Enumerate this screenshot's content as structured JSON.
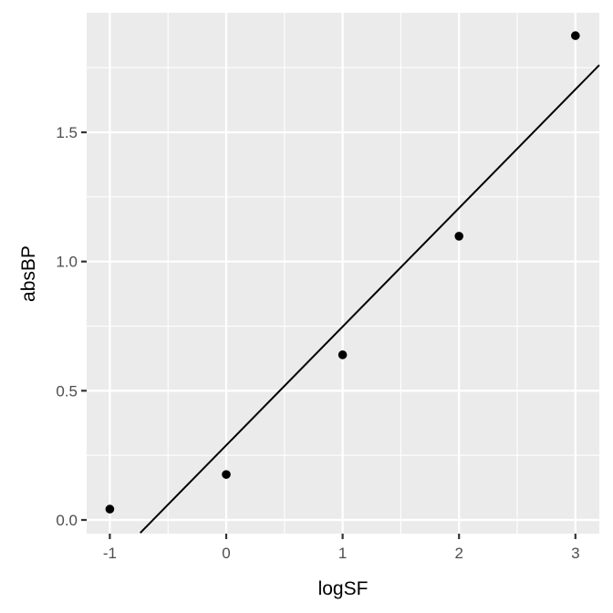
{
  "chart_data": {
    "type": "scatter",
    "title": "",
    "xlabel": "logSF",
    "ylabel": "absBP",
    "x": [
      -1,
      0,
      1,
      2,
      3
    ],
    "y": [
      0.042,
      0.176,
      0.639,
      1.098,
      1.874
    ],
    "xlim": [
      -1.2,
      3.2
    ],
    "ylim": [
      -0.05,
      1.96
    ],
    "x_ticks": [
      "-1",
      "0",
      "1",
      "2",
      "3"
    ],
    "y_ticks": [
      "0.0",
      "0.5",
      "1.0",
      "1.5"
    ],
    "fit_line": {
      "type": "linear",
      "intercept": 0.289,
      "slope": 0.459
    },
    "grid": true,
    "legend": null,
    "colors": {
      "panel": "#ebebeb",
      "grid": "#ffffff",
      "points": "#000000",
      "line": "#000000"
    }
  }
}
